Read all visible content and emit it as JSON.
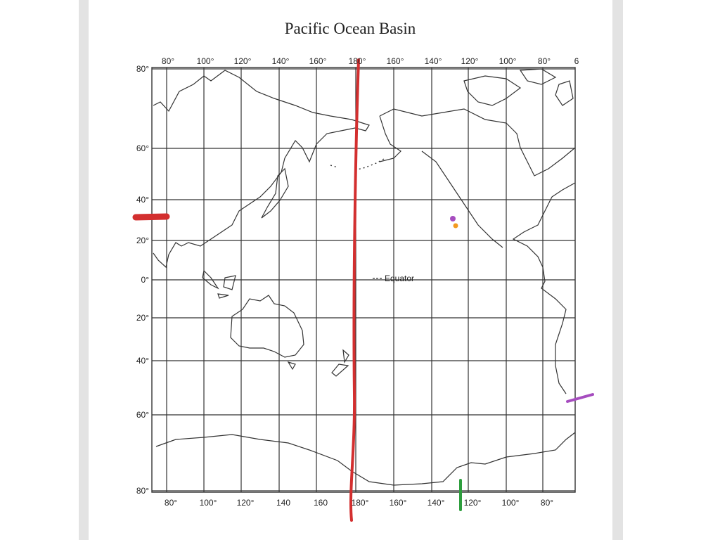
{
  "title": "Pacific Ocean Basin",
  "map": {
    "top_labels": [
      "80°",
      "100°",
      "120°",
      "140°",
      "160°",
      "180°",
      "160°",
      "140°",
      "120°",
      "100°",
      "80°",
      "6"
    ],
    "bottom_labels": [
      "80°",
      "100°",
      "120°",
      "140",
      "160",
      "180°",
      "160°",
      "140°",
      "120°",
      "100°",
      "80°"
    ],
    "left_labels": [
      "80°",
      "60°",
      "40°",
      "20°",
      "0°",
      "20°",
      "40°",
      "60°",
      "80°"
    ],
    "equator_label": "Equator"
  }
}
